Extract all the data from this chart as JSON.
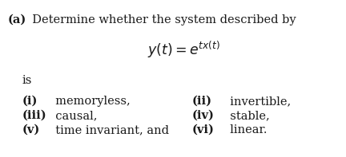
{
  "background_color": "#ffffff",
  "title_bold": "(a)",
  "title_text": "  Determine whether the system described by",
  "equation": "$y(t) = e^{tx(t)}$",
  "is_text": "is",
  "left_items": [
    [
      "(i)",
      "  memoryless,"
    ],
    [
      "(iii)",
      "  causal,"
    ],
    [
      "(v)",
      "  time invariant, and"
    ]
  ],
  "right_items": [
    [
      "(ii)",
      "  invertible,"
    ],
    [
      "(iv)",
      "  stable,"
    ],
    [
      "(vi)",
      "  linear."
    ]
  ],
  "font_size_body": 10.5,
  "font_size_eq": 12.5,
  "text_color": "#1a1a1a",
  "fig_width": 4.32,
  "fig_height": 1.97,
  "dpi": 100
}
